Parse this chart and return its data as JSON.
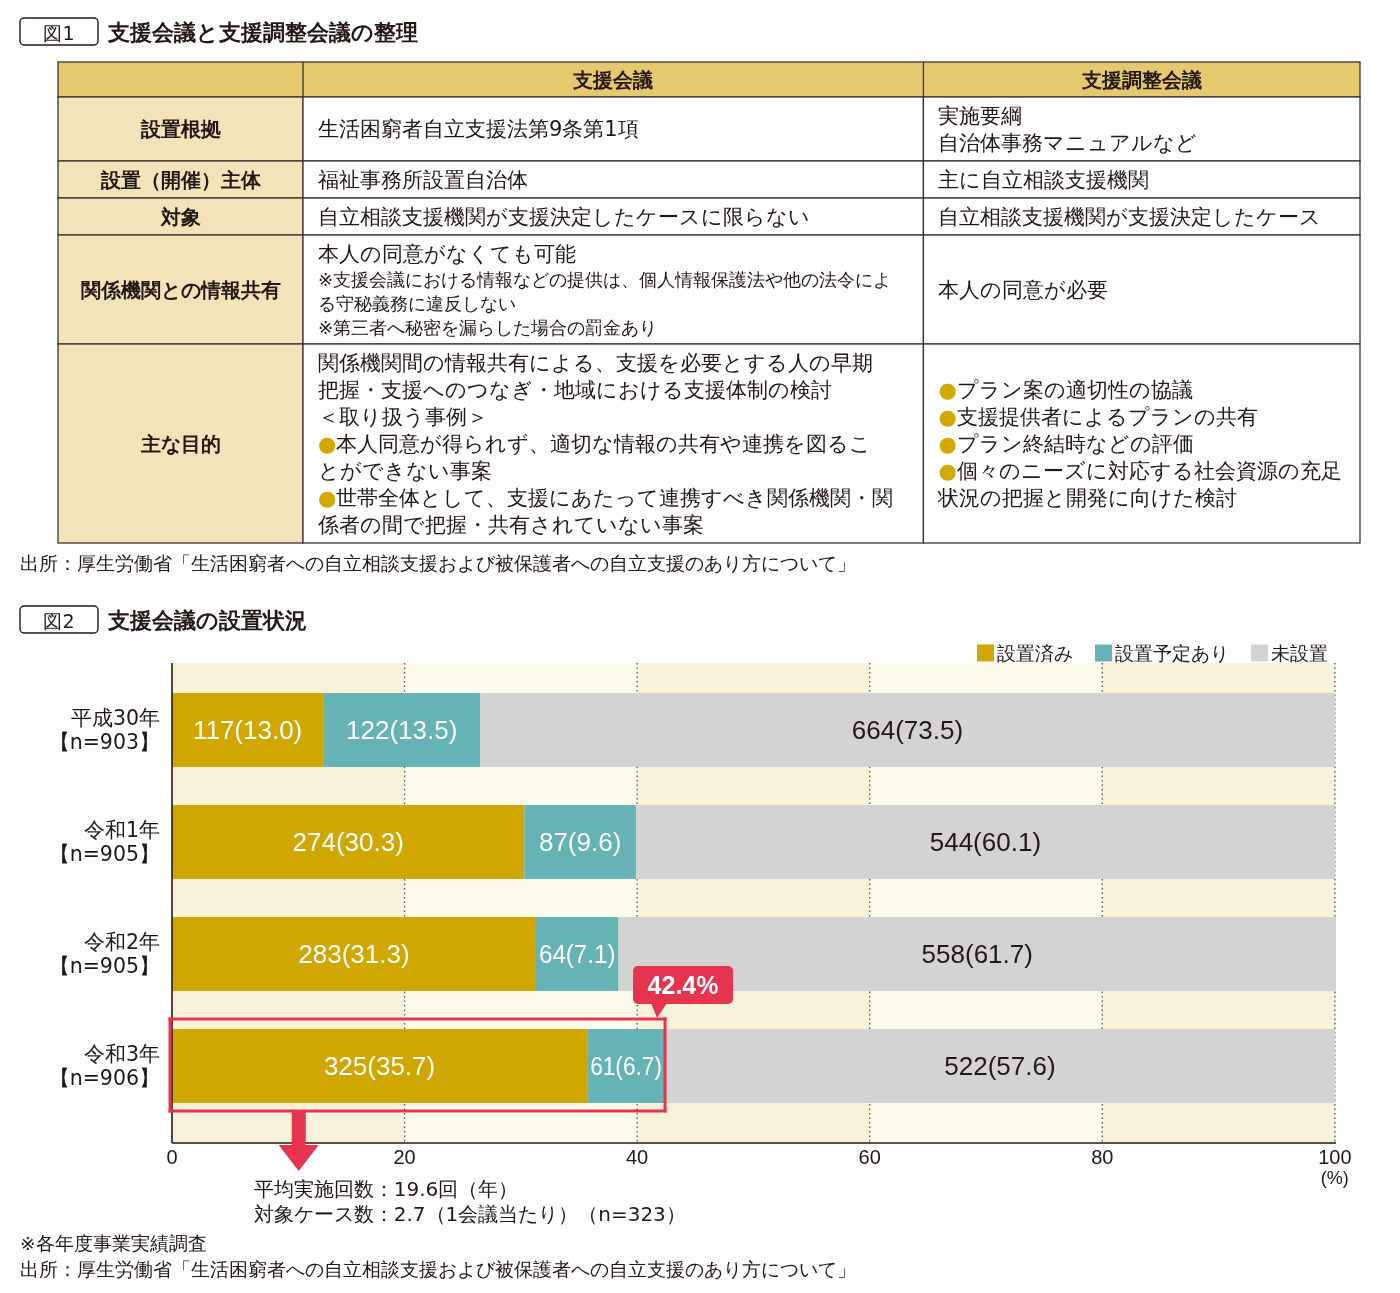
{
  "chart_data": [
    {
      "type": "other",
      "title": "支援会議と支援調整会議の整理",
      "annotations": [
        "図1",
        "出所：厚生労働省「生活困窮者への自立相談支援および被保護者への自立支援のあり方について」"
      ],
      "categories": [
        "支援会議",
        "支援調整会議"
      ],
      "y_categories": [
        "設置根拠",
        "設置（開催）主体",
        "対象",
        "関係機関との情報共有",
        "主な目的"
      ],
      "cell_labels": [
        [
          "生活困窮者自立支援法第9条第1項",
          [
            "実施要綱",
            "自治体事務マニュアルなど"
          ]
        ],
        [
          "福祉事務所設置自治体",
          "主に自立相談支援機関"
        ],
        [
          "自立相談支援機関が支援決定したケースに限らない",
          "自立相談支援機関が支援決定したケース"
        ],
        [
          [
            "本人の同意がなくても可能",
            [
              "※支援会議における情報などの提供は、個人情報保護法や他の法令によ",
              "る守秘義務に違反しない",
              "※第三者へ秘密を漏らした場合の罰金あり"
            ]
          ],
          "本人の同意が必要"
        ],
        [
          [
            "関係機関間の情報共有による、支援を必要とする人の早期",
            "把握・支援へのつなぎ・地域における支援体制の検討",
            "＜取り扱う事例＞",
            "●本人同意が得られず、適切な情報の共有や連携を図るこ",
            "とができない事案",
            "●世帯全体として、支援にあたって連携すべき関係機関・関",
            "係者の間で把握・共有されていない事案"
          ],
          [
            "●プラン案の適切性の協議",
            "●支援提供者によるプランの共有",
            "●プラン終結時などの評価",
            "●個々のニーズに対応する社会資源の充足",
            "状況の把握と開発に向けた検討"
          ]
        ]
      ]
    },
    {
      "type": "bar",
      "orientation": "horizontal",
      "stacked": true,
      "title": "支援会議の設置状況",
      "categories": [
        "平成30年【n=903】",
        "令和1年【n=905】",
        "令和2年【n=905】",
        "令和3年【n=906】"
      ],
      "series": [
        {
          "name": "設置済み",
          "color": "#d0a700",
          "values": [
            13.0,
            30.3,
            31.3,
            35.7
          ],
          "value_labels": [
            "117(13.0)",
            "274(30.3)",
            "283(31.3)",
            "325(35.7)"
          ]
        },
        {
          "name": "設置予定あり",
          "color": "#66b3b5",
          "values": [
            13.5,
            9.6,
            7.1,
            6.7
          ],
          "value_labels": [
            "122(13.5)",
            "87(9.6)",
            "64(7.1)",
            "61(6.7)"
          ]
        },
        {
          "name": "未設置",
          "color": "#d3d3d3",
          "values": [
            73.5,
            60.1,
            61.7,
            57.6
          ],
          "value_labels": [
            "664(73.5)",
            "544(60.1)",
            "558(61.7)",
            "522(57.6)"
          ]
        }
      ],
      "xlim": [
        0,
        100.1
      ],
      "xticks": [
        0,
        20,
        40,
        60,
        80,
        100
      ],
      "xlabel": "(%)",
      "grid": "x",
      "legend": "top right",
      "annotations": [
        "図2",
        {
          "text": "42.4%",
          "x": 42.4,
          "y": "令和3年【n=906】"
        },
        "平均実施回数：19.6回（年）",
        "対象ケース数：2.7（1会議当たり）（n=323）",
        "※各年度事業実績調査",
        "出所：厚生労働省「生活困窮者への自立相談支援および被保護者への自立支援のあり方について」"
      ]
    }
  ]
}
